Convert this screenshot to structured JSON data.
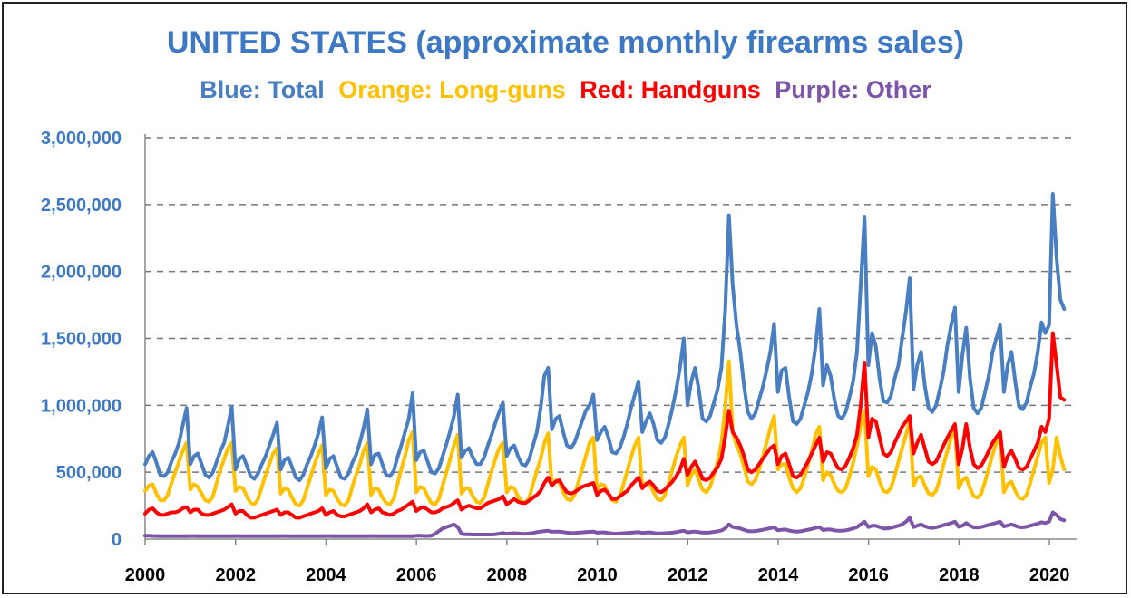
{
  "chart_data": {
    "type": "line",
    "title": "UNITED STATES (approximate monthly firearms sales)",
    "legend": [
      {
        "label": "Blue: Total",
        "color": "#4a7ec2"
      },
      {
        "label": "Orange: Long-guns",
        "color": "#ffc000"
      },
      {
        "label": "Red: Handguns",
        "color": "#ff0000"
      },
      {
        "label": "Purple: Other",
        "color": "#7d55a8"
      }
    ],
    "xlim": [
      2000,
      2020.6
    ],
    "ylim": [
      0,
      3000000
    ],
    "x_ticks": [
      "2000",
      "2002",
      "2004",
      "2006",
      "2008",
      "2010",
      "2012",
      "2014",
      "2016",
      "2018",
      "2020"
    ],
    "y_ticks": [
      "3,000,000",
      "2,500,000",
      "2,000,000",
      "1,500,000",
      "1,000,000",
      "500,000",
      "0"
    ],
    "grid": "horizontal dashed",
    "x_start": 2000.0,
    "x_step": 0.0833,
    "series": [
      {
        "name": "Blue: Total",
        "color": "#4a7ec2",
        "values": [
          560000,
          620000,
          650000,
          570000,
          480000,
          470000,
          500000,
          580000,
          640000,
          720000,
          850000,
          980000,
          560000,
          620000,
          640000,
          560000,
          480000,
          460000,
          500000,
          580000,
          660000,
          720000,
          850000,
          990000,
          520000,
          600000,
          620000,
          550000,
          470000,
          450000,
          490000,
          560000,
          620000,
          700000,
          780000,
          870000,
          520000,
          590000,
          610000,
          540000,
          460000,
          440000,
          480000,
          560000,
          620000,
          700000,
          790000,
          910000,
          530000,
          600000,
          620000,
          540000,
          460000,
          450000,
          490000,
          570000,
          630000,
          720000,
          830000,
          970000,
          560000,
          630000,
          640000,
          560000,
          480000,
          470000,
          510000,
          610000,
          700000,
          800000,
          900000,
          1090000,
          590000,
          650000,
          660000,
          580000,
          500000,
          490000,
          530000,
          620000,
          710000,
          810000,
          920000,
          1080000,
          610000,
          660000,
          680000,
          610000,
          560000,
          560000,
          610000,
          700000,
          780000,
          870000,
          950000,
          1020000,
          620000,
          680000,
          700000,
          620000,
          560000,
          550000,
          600000,
          700000,
          800000,
          980000,
          1220000,
          1280000,
          820000,
          900000,
          920000,
          800000,
          700000,
          680000,
          720000,
          800000,
          880000,
          960000,
          1000000,
          1080000,
          740000,
          800000,
          840000,
          760000,
          650000,
          640000,
          680000,
          760000,
          860000,
          980000,
          1080000,
          1180000,
          800000,
          880000,
          940000,
          860000,
          740000,
          720000,
          760000,
          860000,
          980000,
          1120000,
          1280000,
          1500000,
          1000000,
          1180000,
          1280000,
          1120000,
          900000,
          880000,
          920000,
          1020000,
          1120000,
          1280000,
          1700000,
          2420000,
          1900000,
          1600000,
          1400000,
          1150000,
          950000,
          900000,
          940000,
          1040000,
          1140000,
          1260000,
          1400000,
          1610000,
          1100000,
          1260000,
          1280000,
          1060000,
          880000,
          860000,
          900000,
          1000000,
          1100000,
          1240000,
          1440000,
          1720000,
          1150000,
          1300000,
          1220000,
          1040000,
          920000,
          900000,
          950000,
          1060000,
          1180000,
          1400000,
          1900000,
          2410000,
          1300000,
          1540000,
          1440000,
          1200000,
          1030000,
          1020000,
          1070000,
          1200000,
          1300000,
          1500000,
          1700000,
          1950000,
          1120000,
          1300000,
          1400000,
          1150000,
          980000,
          950000,
          1000000,
          1120000,
          1250000,
          1450000,
          1600000,
          1730000,
          1100000,
          1380000,
          1580000,
          1200000,
          980000,
          940000,
          980000,
          1100000,
          1220000,
          1400000,
          1500000,
          1600000,
          1100000,
          1300000,
          1400000,
          1180000,
          990000,
          970000,
          1020000,
          1140000,
          1240000,
          1400000,
          1620000,
          1540000,
          1600000,
          2580000,
          2100000,
          1790000,
          1720000
        ]
      },
      {
        "name": "Orange: Long-guns",
        "color": "#ffc000",
        "values": [
          360000,
          400000,
          410000,
          340000,
          290000,
          290000,
          330000,
          420000,
          500000,
          580000,
          660000,
          720000,
          370000,
          410000,
          390000,
          340000,
          290000,
          280000,
          320000,
          420000,
          520000,
          600000,
          680000,
          720000,
          360000,
          390000,
          380000,
          320000,
          270000,
          260000,
          300000,
          390000,
          480000,
          560000,
          640000,
          680000,
          340000,
          380000,
          370000,
          310000,
          260000,
          250000,
          290000,
          380000,
          470000,
          560000,
          640000,
          700000,
          330000,
          370000,
          360000,
          300000,
          260000,
          250000,
          290000,
          390000,
          480000,
          560000,
          660000,
          720000,
          330000,
          380000,
          370000,
          310000,
          270000,
          260000,
          300000,
          410000,
          520000,
          620000,
          740000,
          800000,
          350000,
          390000,
          380000,
          320000,
          270000,
          260000,
          300000,
          400000,
          500000,
          600000,
          700000,
          780000,
          340000,
          380000,
          380000,
          320000,
          280000,
          270000,
          310000,
          410000,
          510000,
          600000,
          680000,
          720000,
          350000,
          390000,
          380000,
          320000,
          280000,
          270000,
          310000,
          410000,
          510000,
          600000,
          720000,
          790000,
          400000,
          440000,
          420000,
          350000,
          300000,
          290000,
          330000,
          420000,
          520000,
          620000,
          720000,
          760000,
          370000,
          410000,
          400000,
          340000,
          290000,
          280000,
          320000,
          410000,
          510000,
          610000,
          700000,
          760000,
          380000,
          420000,
          410000,
          350000,
          300000,
          290000,
          330000,
          420000,
          520000,
          620000,
          700000,
          760000,
          400000,
          480000,
          520000,
          440000,
          370000,
          350000,
          390000,
          480000,
          580000,
          720000,
          980000,
          1330000,
          800000,
          700000,
          640000,
          540000,
          430000,
          410000,
          440000,
          520000,
          620000,
          720000,
          830000,
          920000,
          520000,
          560000,
          560000,
          460000,
          380000,
          350000,
          380000,
          460000,
          560000,
          660000,
          780000,
          840000,
          440000,
          500000,
          480000,
          410000,
          360000,
          350000,
          380000,
          470000,
          570000,
          700000,
          850000,
          960000,
          470000,
          540000,
          520000,
          430000,
          360000,
          350000,
          380000,
          470000,
          580000,
          680000,
          780000,
          880000,
          400000,
          460000,
          470000,
          400000,
          340000,
          330000,
          360000,
          450000,
          560000,
          660000,
          760000,
          820000,
          380000,
          440000,
          460000,
          380000,
          320000,
          310000,
          340000,
          430000,
          530000,
          630000,
          720000,
          780000,
          350000,
          410000,
          430000,
          360000,
          310000,
          300000,
          330000,
          420000,
          520000,
          620000,
          720000,
          760000,
          420000,
          520000,
          760000,
          620000,
          520000
        ]
      },
      {
        "name": "Red: Handguns",
        "color": "#ff0000",
        "values": [
          190000,
          220000,
          230000,
          200000,
          180000,
          180000,
          190000,
          200000,
          200000,
          210000,
          230000,
          240000,
          200000,
          220000,
          220000,
          190000,
          180000,
          180000,
          190000,
          200000,
          210000,
          220000,
          240000,
          260000,
          190000,
          210000,
          210000,
          180000,
          160000,
          160000,
          170000,
          180000,
          190000,
          200000,
          210000,
          220000,
          180000,
          200000,
          200000,
          180000,
          160000,
          160000,
          170000,
          180000,
          190000,
          200000,
          210000,
          230000,
          180000,
          200000,
          210000,
          180000,
          170000,
          170000,
          180000,
          190000,
          200000,
          210000,
          230000,
          260000,
          200000,
          220000,
          230000,
          200000,
          190000,
          180000,
          190000,
          210000,
          220000,
          240000,
          260000,
          280000,
          210000,
          230000,
          240000,
          220000,
          200000,
          200000,
          210000,
          230000,
          240000,
          250000,
          270000,
          290000,
          220000,
          240000,
          250000,
          240000,
          230000,
          230000,
          250000,
          270000,
          280000,
          290000,
          300000,
          320000,
          260000,
          280000,
          300000,
          280000,
          270000,
          270000,
          290000,
          310000,
          330000,
          360000,
          420000,
          460000,
          400000,
          430000,
          440000,
          390000,
          350000,
          340000,
          350000,
          370000,
          390000,
          400000,
          410000,
          420000,
          330000,
          360000,
          370000,
          340000,
          300000,
          300000,
          320000,
          340000,
          360000,
          400000,
          430000,
          460000,
          380000,
          410000,
          430000,
          400000,
          360000,
          350000,
          370000,
          400000,
          430000,
          470000,
          520000,
          600000,
          480000,
          540000,
          580000,
          520000,
          450000,
          440000,
          460000,
          500000,
          540000,
          600000,
          760000,
          960000,
          800000,
          760000,
          700000,
          620000,
          520000,
          500000,
          520000,
          560000,
          600000,
          640000,
          680000,
          700000,
          560000,
          620000,
          640000,
          560000,
          470000,
          460000,
          480000,
          530000,
          580000,
          640000,
          700000,
          760000,
          580000,
          650000,
          640000,
          580000,
          530000,
          520000,
          550000,
          610000,
          680000,
          780000,
          1000000,
          1320000,
          760000,
          900000,
          880000,
          760000,
          640000,
          620000,
          650000,
          720000,
          780000,
          840000,
          880000,
          920000,
          640000,
          720000,
          780000,
          680000,
          580000,
          560000,
          580000,
          640000,
          700000,
          760000,
          810000,
          860000,
          560000,
          680000,
          860000,
          680000,
          560000,
          530000,
          550000,
          600000,
          660000,
          720000,
          760000,
          800000,
          540000,
          620000,
          660000,
          600000,
          530000,
          520000,
          540000,
          600000,
          660000,
          720000,
          840000,
          800000,
          900000,
          1540000,
          1300000,
          1060000,
          1040000
        ]
      },
      {
        "name": "Purple: Other",
        "color": "#7d55a8",
        "values": [
          25000,
          25000,
          24000,
          23000,
          22000,
          22000,
          22000,
          22000,
          22000,
          22000,
          22000,
          22000,
          23000,
          23000,
          22000,
          22000,
          22000,
          22000,
          22000,
          22000,
          22000,
          22000,
          22000,
          22000,
          23000,
          23000,
          22000,
          22000,
          22000,
          22000,
          22000,
          22000,
          22000,
          22000,
          22000,
          22000,
          23000,
          23000,
          22000,
          22000,
          22000,
          22000,
          22000,
          22000,
          22000,
          22000,
          22000,
          22000,
          23000,
          23000,
          22000,
          22000,
          22000,
          22000,
          22000,
          22000,
          22000,
          22000,
          22000,
          22000,
          23000,
          23000,
          22000,
          22000,
          22000,
          22000,
          22000,
          22000,
          22000,
          22000,
          22000,
          22000,
          25000,
          25000,
          24000,
          24000,
          25000,
          40000,
          60000,
          80000,
          90000,
          100000,
          110000,
          90000,
          40000,
          35000,
          35000,
          34000,
          34000,
          34000,
          34000,
          34000,
          34000,
          36000,
          40000,
          45000,
          40000,
          42000,
          44000,
          42000,
          40000,
          40000,
          42000,
          46000,
          52000,
          56000,
          60000,
          62000,
          55000,
          56000,
          56000,
          52000,
          48000,
          46000,
          46000,
          48000,
          50000,
          52000,
          54000,
          56000,
          48000,
          50000,
          50000,
          46000,
          42000,
          40000,
          42000,
          44000,
          46000,
          48000,
          50000,
          52000,
          46000,
          48000,
          50000,
          46000,
          42000,
          42000,
          44000,
          46000,
          48000,
          52000,
          58000,
          62000,
          50000,
          54000,
          56000,
          52000,
          48000,
          48000,
          50000,
          54000,
          58000,
          64000,
          80000,
          110000,
          90000,
          85000,
          80000,
          70000,
          60000,
          58000,
          60000,
          64000,
          70000,
          76000,
          82000,
          88000,
          66000,
          70000,
          72000,
          64000,
          58000,
          56000,
          58000,
          64000,
          70000,
          76000,
          84000,
          90000,
          68000,
          72000,
          72000,
          66000,
          62000,
          62000,
          66000,
          72000,
          80000,
          90000,
          110000,
          130000,
          90000,
          100000,
          100000,
          90000,
          80000,
          80000,
          84000,
          92000,
          100000,
          110000,
          130000,
          160000,
          90000,
          100000,
          110000,
          96000,
          86000,
          84000,
          88000,
          96000,
          104000,
          112000,
          120000,
          130000,
          92000,
          100000,
          120000,
          100000,
          88000,
          86000,
          90000,
          98000,
          106000,
          114000,
          122000,
          130000,
          94000,
          102000,
          110000,
          100000,
          90000,
          88000,
          92000,
          100000,
          108000,
          116000,
          126000,
          120000,
          130000,
          200000,
          180000,
          150000,
          140000
        ]
      }
    ]
  }
}
